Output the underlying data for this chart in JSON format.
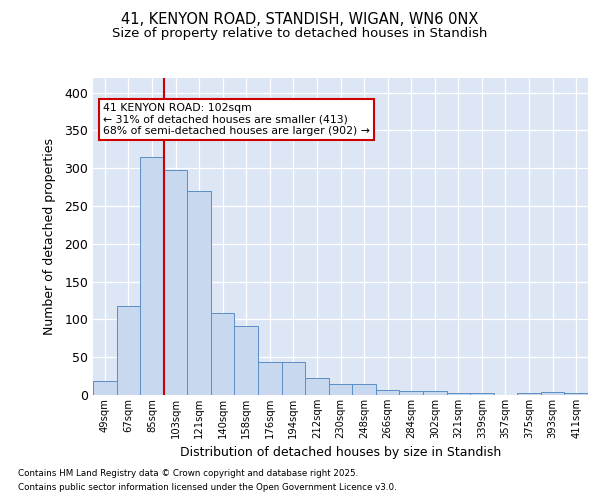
{
  "title1": "41, KENYON ROAD, STANDISH, WIGAN, WN6 0NX",
  "title2": "Size of property relative to detached houses in Standish",
  "xlabel": "Distribution of detached houses by size in Standish",
  "ylabel": "Number of detached properties",
  "bar_labels": [
    "49sqm",
    "67sqm",
    "85sqm",
    "103sqm",
    "121sqm",
    "140sqm",
    "158sqm",
    "176sqm",
    "194sqm",
    "212sqm",
    "230sqm",
    "248sqm",
    "266sqm",
    "284sqm",
    "302sqm",
    "321sqm",
    "339sqm",
    "357sqm",
    "375sqm",
    "393sqm",
    "411sqm"
  ],
  "bar_values": [
    19,
    118,
    315,
    298,
    270,
    108,
    91,
    44,
    44,
    22,
    15,
    15,
    7,
    5,
    5,
    3,
    2,
    0,
    3,
    4,
    3
  ],
  "bar_color": "#c8d9ef",
  "bar_edge_color": "#5b8ec4",
  "vline_x": 2.5,
  "vline_color": "#cc0000",
  "annotation_text": "41 KENYON ROAD: 102sqm\n← 31% of detached houses are smaller (413)\n68% of semi-detached houses are larger (902) →",
  "annotation_box_color": "#ffffff",
  "annotation_box_edge": "#cc0000",
  "ylim": [
    0,
    420
  ],
  "yticks": [
    0,
    50,
    100,
    150,
    200,
    250,
    300,
    350,
    400
  ],
  "bg_color": "#dce6f4",
  "footer1": "Contains HM Land Registry data © Crown copyright and database right 2025.",
  "footer2": "Contains public sector information licensed under the Open Government Licence v3.0."
}
